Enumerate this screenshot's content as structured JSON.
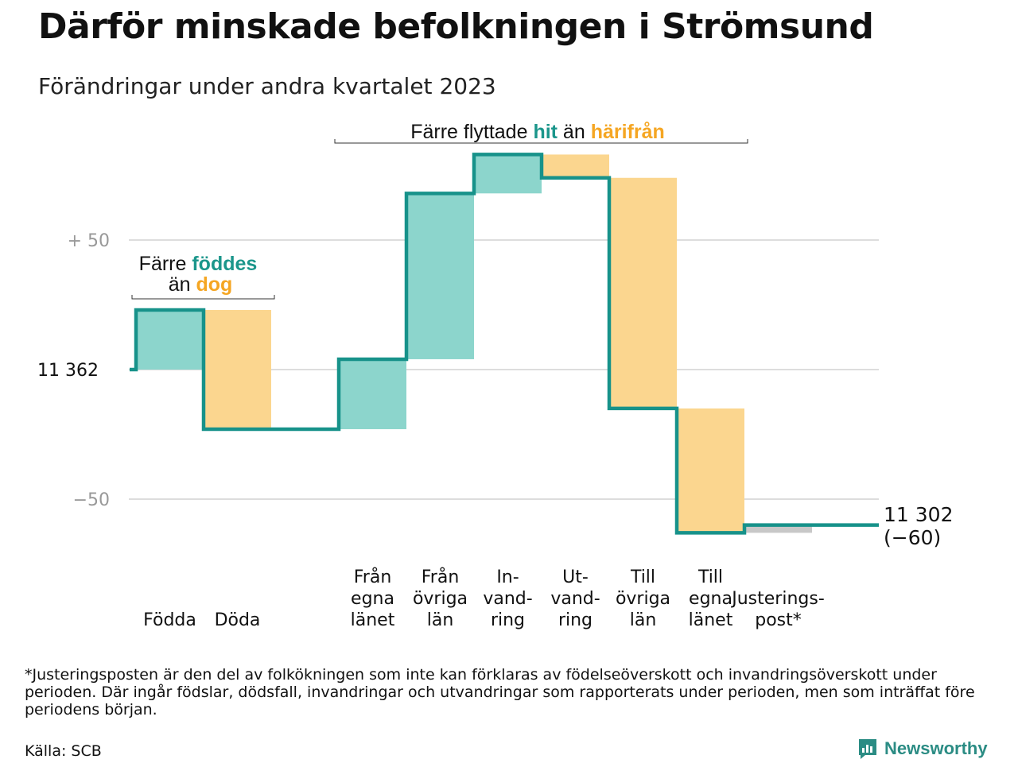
{
  "title": "Därför minskade befolkningen i Strömsund",
  "subtitle": "Förändringar under andra kvartalet 2023",
  "colors": {
    "increase_fill": "#8cd5cc",
    "decrease_fill": "#fbd68f",
    "adjustment_fill": "#c8c8c8",
    "line": "#17928a",
    "accent_teal": "#1b968b",
    "accent_orange": "#f5a623",
    "grid": "#dddddd"
  },
  "chart_data": {
    "type": "waterfall",
    "start_value": 11362,
    "start_label": "11  362",
    "end_value": 11302,
    "end_label": "11 302",
    "end_change_label": "(−60)",
    "ylim": [
      -62,
      82
    ],
    "ticks": [
      {
        "value": 50,
        "label": "+  50"
      },
      {
        "value": 0,
        "label": ""
      },
      {
        "value": -50,
        "label": "−50"
      }
    ],
    "grid": true,
    "steps": [
      {
        "label": [
          "Födda"
        ],
        "value": 23,
        "kind": "increase"
      },
      {
        "label": [
          "Döda"
        ],
        "value": -46,
        "kind": "decrease"
      },
      {
        "label": [],
        "value": 0,
        "kind": "gap"
      },
      {
        "label": [
          "Från",
          "egna",
          "länet"
        ],
        "value": 27,
        "kind": "increase"
      },
      {
        "label": [
          "Från",
          "övriga",
          "län"
        ],
        "value": 64,
        "kind": "increase"
      },
      {
        "label": [
          "In-",
          "vand-",
          "ring"
        ],
        "value": 15,
        "kind": "increase"
      },
      {
        "label": [
          "Ut-",
          "vand-",
          "ring"
        ],
        "value": -9,
        "kind": "decrease"
      },
      {
        "label": [
          "Till",
          "övriga",
          "län"
        ],
        "value": -89,
        "kind": "decrease"
      },
      {
        "label": [
          "Till",
          "egna",
          "länet"
        ],
        "value": -48,
        "kind": "decrease"
      },
      {
        "label": [
          "Justerings-",
          "post*"
        ],
        "value": 3,
        "kind": "adjustment"
      }
    ],
    "annotations": [
      {
        "parts": [
          {
            "text": "Färre ",
            "style": "plain"
          },
          {
            "text": "föddes",
            "style": "teal"
          },
          {
            "text": "än ",
            "style": "plain"
          },
          {
            "text": "dog",
            "style": "orange"
          }
        ]
      },
      {
        "parts": [
          {
            "text": "Färre flyttade ",
            "style": "plain"
          },
          {
            "text": "hit",
            "style": "teal"
          },
          {
            "text": " än ",
            "style": "plain"
          },
          {
            "text": "härifrån",
            "style": "orange"
          }
        ]
      }
    ]
  },
  "footnote": "*Justeringsposten är den del av folkökningen som inte kan förklaras av födelseöverskott och invandringsöverskott under perioden. Där ingår födslar, dödsfall, invandringar och utvandringar som rapporterats under perioden, men som inträffat före periodens början.",
  "source": "Källa: SCB",
  "brand": {
    "name": "Newsworthy",
    "icon": "newsworthy-chart-icon"
  }
}
